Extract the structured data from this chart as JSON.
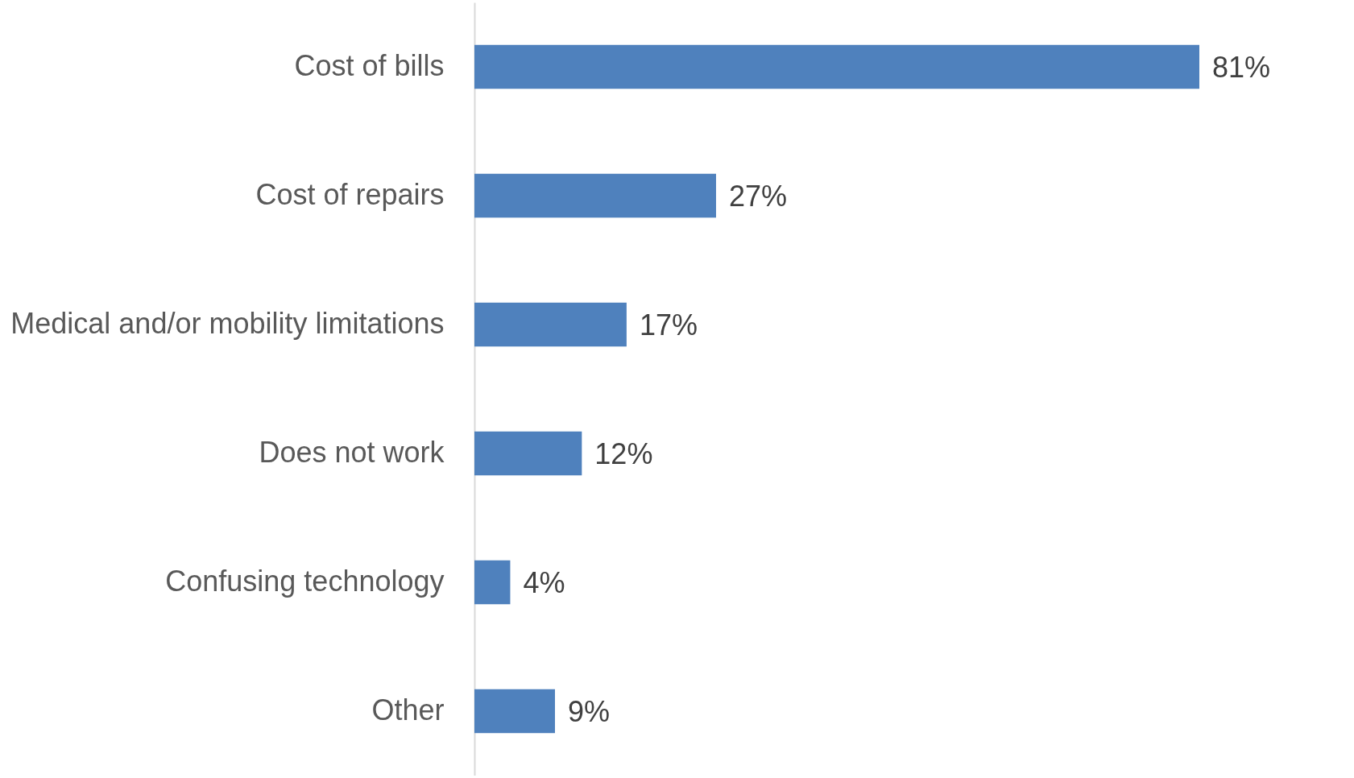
{
  "chart_data": {
    "type": "bar",
    "orientation": "horizontal",
    "categories": [
      "Cost of bills",
      "Cost of repairs",
      "Medical and/or mobility limitations",
      "Does not work",
      "Confusing technology",
      "Other"
    ],
    "values": [
      81,
      27,
      17,
      12,
      4,
      9
    ],
    "value_labels": [
      "81%",
      "27%",
      "17%",
      "12%",
      "4%",
      "9%"
    ],
    "color": "#4f81bd"
  }
}
